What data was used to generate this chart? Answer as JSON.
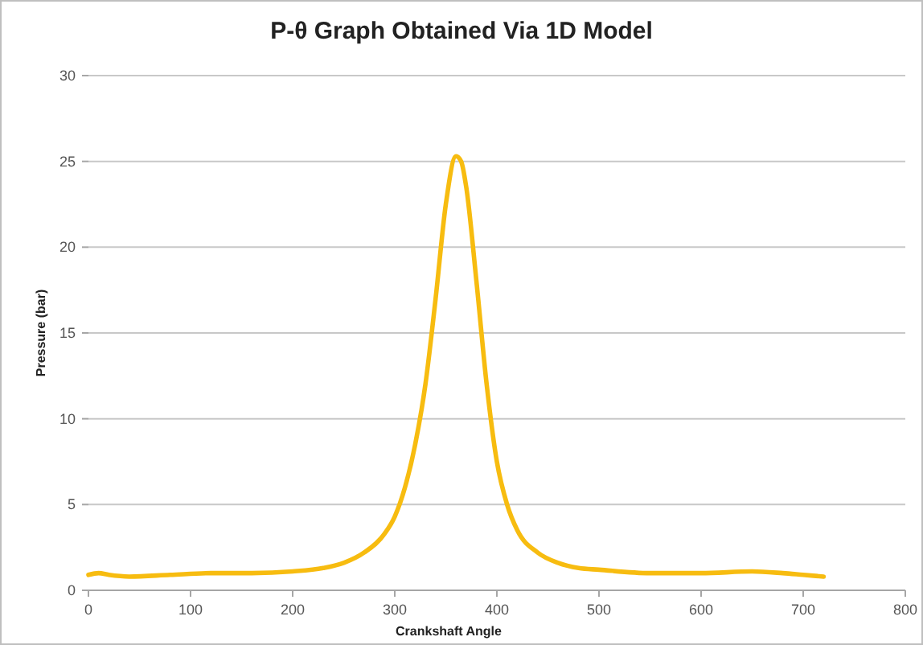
{
  "chart_data": {
    "type": "line",
    "title": "P-θ  Graph Obtained  Via 1D Model",
    "xlabel": "Crankshaft Angle",
    "ylabel": "Pressure (bar)",
    "x": [
      0,
      10,
      20,
      40,
      80,
      120,
      160,
      200,
      230,
      250,
      270,
      290,
      300,
      310,
      320,
      330,
      340,
      350,
      360,
      365,
      370,
      380,
      390,
      400,
      410,
      420,
      440,
      460,
      480,
      500,
      550,
      600,
      650,
      680,
      700,
      720
    ],
    "series": [
      {
        "color": "#f7bc10",
        "values": [
          0.9,
          1.0,
          0.9,
          0.8,
          0.9,
          1.0,
          1.0,
          1.1,
          1.3,
          1.6,
          2.2,
          3.3,
          4.3,
          6,
          8.5,
          12,
          17,
          22.5,
          25.3,
          25,
          23.5,
          18,
          12,
          7.5,
          5,
          3.5,
          2.2,
          1.6,
          1.3,
          1.2,
          1.0,
          1.0,
          1.1,
          1.0,
          0.9,
          0.8
        ]
      }
    ],
    "xlim": [
      0,
      800
    ],
    "xticks": [
      0,
      100,
      200,
      300,
      400,
      500,
      600,
      700,
      800
    ],
    "ylim": [
      0,
      30
    ],
    "yticks": [
      0,
      5,
      10,
      15,
      20,
      25,
      30
    ],
    "grid": "y",
    "marker": "none",
    "line_style": "solid"
  }
}
